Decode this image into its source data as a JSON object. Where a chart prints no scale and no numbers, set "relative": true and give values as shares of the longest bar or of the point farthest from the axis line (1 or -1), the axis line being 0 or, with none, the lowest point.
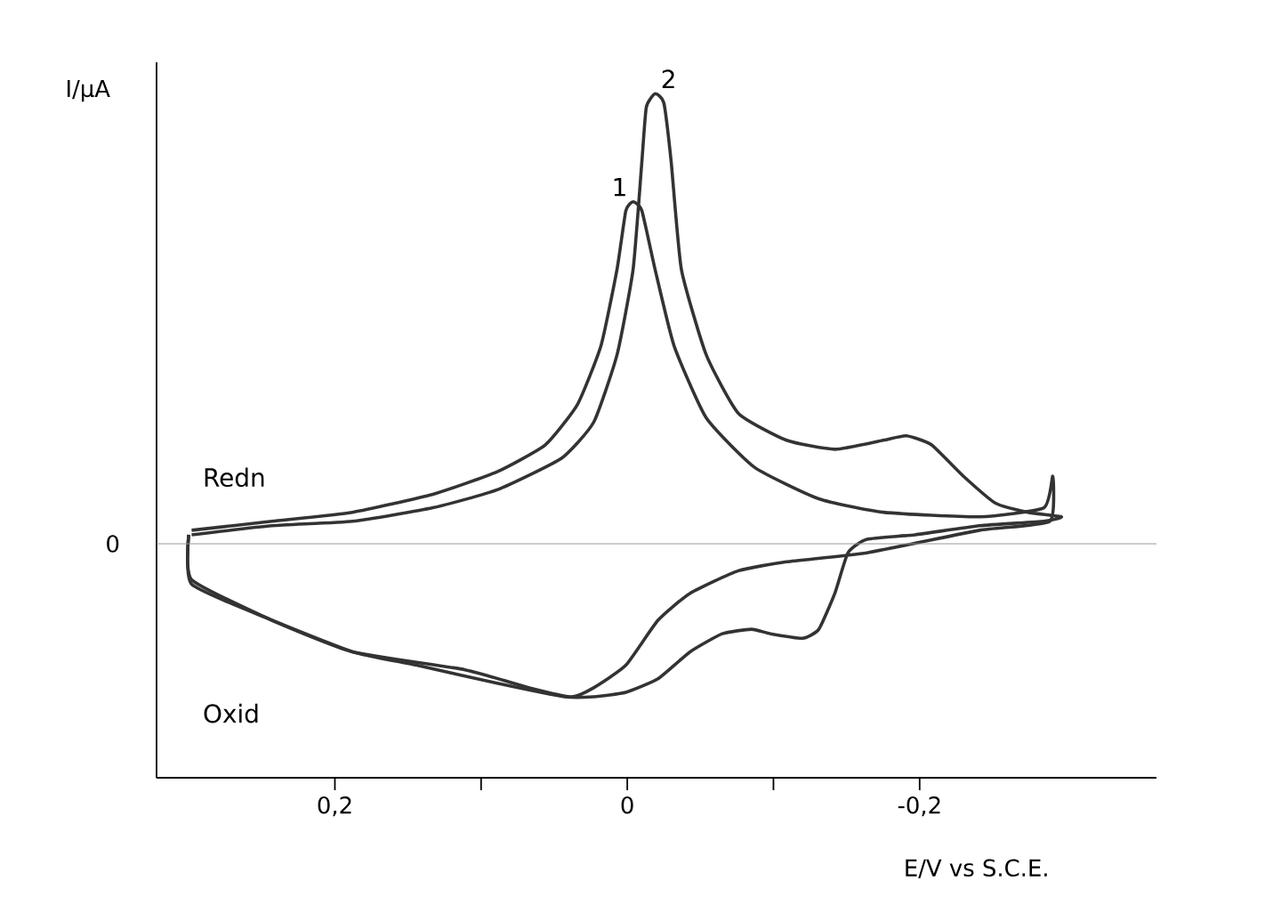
{
  "chart_data": {
    "type": "line",
    "relative": true,
    "ylabel": "I/µA",
    "xlabel": "E/V vs S.C.E.",
    "xlim": [
      0.322,
      -0.362
    ],
    "xticks": [
      {
        "value": 0.2,
        "label": "0,2"
      },
      {
        "value": 0,
        "label": "0"
      },
      {
        "value": -0.2,
        "label": "-0,2"
      }
    ],
    "ref_lines": [
      {
        "axis": "y",
        "value": 0,
        "label": "0"
      }
    ],
    "annotations": [
      "Redn",
      "Oxid"
    ],
    "line_style": "solid",
    "marker": "none",
    "series": [
      {
        "name": "1",
        "color": "#333333",
        "x": [
          0.298,
          0.243,
          0.188,
          0.133,
          0.089,
          0.056,
          0.034,
          0.018,
          0.007,
          0.001,
          -0.004,
          -0.01,
          -0.019,
          -0.032,
          -0.054,
          -0.087,
          -0.131,
          -0.175,
          -0.241,
          -0.285,
          -0.291,
          -0.289,
          -0.241,
          -0.164,
          -0.109,
          -0.076,
          -0.043,
          -0.021,
          0.001,
          0.023,
          0.038,
          0.067,
          0.111,
          0.188,
          0.243,
          0.298,
          0.3
        ],
        "values": [
          0.03,
          0.05,
          0.07,
          0.11,
          0.16,
          0.22,
          0.31,
          0.44,
          0.61,
          0.74,
          0.76,
          0.74,
          0.61,
          0.44,
          0.28,
          0.17,
          0.1,
          0.07,
          0.06,
          0.08,
          0.15,
          0.05,
          0.03,
          -0.02,
          -0.04,
          -0.06,
          -0.11,
          -0.17,
          -0.27,
          -0.32,
          -0.34,
          -0.32,
          -0.28,
          -0.24,
          -0.17,
          -0.08,
          0.02
        ]
      },
      {
        "name": "2",
        "color": "#333333",
        "x": [
          0.298,
          0.243,
          0.188,
          0.133,
          0.089,
          0.045,
          0.023,
          0.007,
          -0.004,
          -0.01,
          -0.013,
          -0.019,
          -0.025,
          -0.03,
          -0.037,
          -0.054,
          -0.076,
          -0.109,
          -0.142,
          -0.175,
          -0.191,
          -0.208,
          -0.23,
          -0.252,
          -0.274,
          -0.297,
          -0.285,
          -0.241,
          -0.197,
          -0.164,
          -0.151,
          -0.142,
          -0.131,
          -0.12,
          -0.098,
          -0.085,
          -0.065,
          -0.043,
          -0.021,
          0.001,
          0.023,
          0.043,
          0.089,
          0.144,
          0.188,
          0.243,
          0.298,
          0.3
        ],
        "values": [
          0.02,
          0.04,
          0.05,
          0.08,
          0.12,
          0.19,
          0.27,
          0.42,
          0.61,
          0.85,
          0.97,
          1.0,
          0.98,
          0.85,
          0.61,
          0.42,
          0.29,
          0.23,
          0.21,
          0.23,
          0.24,
          0.22,
          0.15,
          0.09,
          0.07,
          0.06,
          0.05,
          0.04,
          0.02,
          0.01,
          -0.02,
          -0.11,
          -0.19,
          -0.21,
          -0.2,
          -0.19,
          -0.2,
          -0.24,
          -0.3,
          -0.33,
          -0.34,
          -0.34,
          -0.31,
          -0.27,
          -0.24,
          -0.17,
          -0.09,
          0.02
        ]
      }
    ]
  }
}
